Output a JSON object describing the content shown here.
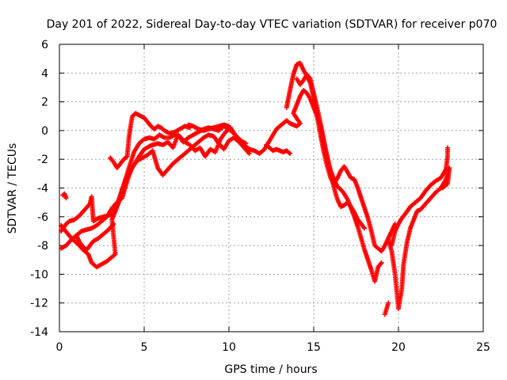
{
  "chart_data": {
    "type": "scatter",
    "title": "Day 201 of 2022, Sidereal Day-to-day VTEC variation (SDTVAR) for receiver p070",
    "xlabel": "GPS time / hours",
    "ylabel": "SDTVAR / TECUs",
    "xlim": [
      0,
      25
    ],
    "ylim": [
      -14,
      6
    ],
    "x_ticks": [
      "0",
      "5",
      "10",
      "15",
      "20",
      "25"
    ],
    "y_ticks": [
      "-14",
      "-12",
      "-10",
      "-8",
      "-6",
      "-4",
      "-2",
      "0",
      "2",
      "4",
      "6"
    ],
    "grid": true,
    "marker": "plus",
    "color": "#ff0000",
    "series": [
      {
        "points": [
          [
            0.1,
            -7.0
          ],
          [
            0.4,
            -6.5
          ],
          [
            0.6,
            -6.3
          ],
          [
            0.9,
            -6.2
          ],
          [
            1.2,
            -5.9
          ],
          [
            1.5,
            -5.5
          ],
          [
            1.8,
            -5.1
          ],
          [
            1.9,
            -4.6
          ],
          [
            2.0,
            -6.3
          ],
          [
            2.3,
            -6.1
          ],
          [
            2.6,
            -6.0
          ],
          [
            2.9,
            -5.9
          ],
          [
            3.2,
            -5.8
          ],
          [
            3.5,
            -4.8
          ],
          [
            3.8,
            -3.8
          ],
          [
            4.1,
            -2.6
          ],
          [
            4.4,
            -1.5
          ],
          [
            4.7,
            -0.9
          ],
          [
            5.0,
            -0.6
          ],
          [
            5.3,
            -0.5
          ],
          [
            5.6,
            -0.6
          ],
          [
            5.9,
            -0.3
          ],
          [
            6.2,
            -0.5
          ],
          [
            6.5,
            -0.5
          ],
          [
            6.8,
            -0.3
          ],
          [
            7.1,
            -0.4
          ],
          [
            7.4,
            -0.8
          ],
          [
            7.7,
            -1.0
          ],
          [
            8.0,
            -1.4
          ],
          [
            8.3,
            -1.2
          ],
          [
            8.6,
            -1.8
          ],
          [
            8.9,
            -1.3
          ],
          [
            9.2,
            -1.5
          ],
          [
            9.5,
            -0.6
          ],
          [
            9.8,
            -0.1
          ],
          [
            10.1,
            0.2
          ],
          [
            10.4,
            -0.4
          ],
          [
            10.7,
            -0.7
          ],
          [
            11.0,
            -0.9
          ]
        ]
      },
      {
        "points": [
          [
            0.1,
            -8.2
          ],
          [
            0.4,
            -8.0
          ],
          [
            0.7,
            -7.6
          ],
          [
            1.0,
            -7.3
          ],
          [
            1.3,
            -7.0
          ],
          [
            1.6,
            -6.9
          ],
          [
            1.9,
            -6.8
          ],
          [
            2.2,
            -6.6
          ],
          [
            2.5,
            -6.3
          ],
          [
            2.8,
            -6.0
          ],
          [
            3.1,
            -5.4
          ],
          [
            3.4,
            -5.0
          ],
          [
            3.7,
            -4.7
          ],
          [
            4.0,
            -3.5
          ],
          [
            4.3,
            -2.5
          ],
          [
            4.6,
            -2.1
          ],
          [
            4.9,
            -1.9
          ],
          [
            5.2,
            -1.7
          ],
          [
            5.5,
            -1.4
          ],
          [
            5.8,
            -2.6
          ],
          [
            6.1,
            -3.1
          ],
          [
            6.4,
            -2.7
          ],
          [
            6.7,
            -2.3
          ],
          [
            7.0,
            -2.0
          ],
          [
            7.3,
            -1.7
          ],
          [
            7.6,
            -1.4
          ],
          [
            7.9,
            -1.1
          ],
          [
            8.2,
            -0.8
          ],
          [
            8.5,
            -0.5
          ],
          [
            8.8,
            -0.3
          ],
          [
            9.1,
            -0.4
          ],
          [
            9.4,
            -0.9
          ],
          [
            9.7,
            -1.3
          ],
          [
            10.0,
            -0.7
          ],
          [
            10.3,
            -0.5
          ],
          [
            10.6,
            -0.8
          ],
          [
            10.9,
            -1.2
          ],
          [
            11.2,
            -1.6
          ]
        ]
      },
      {
        "points": [
          [
            0.1,
            -6.6
          ],
          [
            0.3,
            -6.9
          ],
          [
            0.5,
            -7.2
          ],
          [
            0.8,
            -7.6
          ],
          [
            1.1,
            -7.9
          ],
          [
            1.4,
            -8.3
          ],
          [
            1.7,
            -8.6
          ],
          [
            1.9,
            -9.2
          ],
          [
            2.2,
            -9.5
          ],
          [
            2.5,
            -9.3
          ],
          [
            2.8,
            -9.1
          ],
          [
            3.1,
            -8.8
          ],
          [
            3.3,
            -8.6
          ],
          [
            3.1,
            -6.2
          ],
          [
            3.3,
            -5.6
          ],
          [
            3.5,
            -5.0
          ],
          [
            3.7,
            -4.1
          ],
          [
            3.9,
            -3.4
          ],
          [
            4.1,
            -3.0
          ],
          [
            4.4,
            -2.4
          ],
          [
            4.7,
            -1.8
          ],
          [
            5.0,
            -1.3
          ],
          [
            5.3,
            -1.1
          ],
          [
            5.5,
            -1.0
          ],
          [
            5.8,
            -0.9
          ],
          [
            6.1,
            -1.0
          ],
          [
            6.4,
            -0.8
          ],
          [
            6.7,
            -1.2
          ],
          [
            7.0,
            -0.3
          ],
          [
            7.3,
            -0.8
          ],
          [
            7.6,
            -0.5
          ],
          [
            7.9,
            -0.3
          ],
          [
            8.2,
            -0.1
          ],
          [
            8.5,
            0.1
          ],
          [
            8.8,
            0.2
          ],
          [
            9.1,
            0.1
          ],
          [
            9.4,
            0.0
          ],
          [
            9.7,
            0.3
          ],
          [
            10.0,
            0.1
          ],
          [
            10.3,
            -0.2
          ]
        ]
      },
      {
        "points": [
          [
            0.2,
            -4.5
          ],
          [
            0.3,
            -4.4
          ],
          [
            0.4,
            -4.7
          ],
          [
            1.0,
            -7.3
          ],
          [
            1.2,
            -7.8
          ],
          [
            1.4,
            -8.1
          ],
          [
            1.6,
            -8.3
          ],
          [
            1.8,
            -8.0
          ],
          [
            2.0,
            -7.7
          ],
          [
            2.3,
            -7.5
          ],
          [
            2.6,
            -7.2
          ],
          [
            2.9,
            -6.9
          ],
          [
            3.2,
            -6.5
          ],
          [
            3.0,
            -1.9
          ],
          [
            3.2,
            -2.2
          ],
          [
            3.4,
            -2.6
          ],
          [
            3.6,
            -2.3
          ],
          [
            3.8,
            -2.0
          ],
          [
            4.0,
            -1.8
          ],
          [
            4.1,
            -0.5
          ],
          [
            4.2,
            0.3
          ],
          [
            4.3,
            1.0
          ],
          [
            4.5,
            1.2
          ],
          [
            4.8,
            1.0
          ],
          [
            5.0,
            0.9
          ],
          [
            5.2,
            0.6
          ],
          [
            5.4,
            0.3
          ],
          [
            5.6,
            0.1
          ],
          [
            5.8,
            0.3
          ],
          [
            6.0,
            0.2
          ],
          [
            6.2,
            0.0
          ],
          [
            6.5,
            -0.2
          ],
          [
            6.8,
            -0.1
          ],
          [
            7.1,
            0.1
          ],
          [
            7.4,
            0.3
          ],
          [
            7.7,
            0.2
          ]
        ]
      },
      {
        "points": [
          [
            7.6,
            0.4
          ],
          [
            7.9,
            0.3
          ],
          [
            8.2,
            0.1
          ],
          [
            8.5,
            0.0
          ],
          [
            8.8,
            0.1
          ],
          [
            9.1,
            0.2
          ],
          [
            9.4,
            0.3
          ],
          [
            9.7,
            0.4
          ],
          [
            10.0,
            0.3
          ],
          [
            10.3,
            -0.2
          ],
          [
            10.6,
            -0.6
          ],
          [
            10.9,
            -1.0
          ],
          [
            11.2,
            -1.3
          ],
          [
            11.5,
            -1.4
          ],
          [
            11.8,
            -1.6
          ],
          [
            12.1,
            -1.3
          ],
          [
            12.4,
            -0.7
          ],
          [
            12.6,
            -0.3
          ],
          [
            12.8,
            0.1
          ],
          [
            13.0,
            0.3
          ],
          [
            13.2,
            0.5
          ],
          [
            13.4,
            0.7
          ],
          [
            13.6,
            0.5
          ],
          [
            13.8,
            0.4
          ],
          [
            14.0,
            0.3
          ],
          [
            14.2,
            0.5
          ],
          [
            13.8,
            1.2
          ],
          [
            14.0,
            1.8
          ],
          [
            14.2,
            2.4
          ],
          [
            14.4,
            2.8
          ],
          [
            14.6,
            2.6
          ],
          [
            14.8,
            2.2
          ],
          [
            15.0,
            1.6
          ],
          [
            15.2,
            1.0
          ],
          [
            15.4,
            0.2
          ],
          [
            15.6,
            -0.8
          ],
          [
            15.8,
            -1.8
          ],
          [
            16.0,
            -3.0
          ],
          [
            16.2,
            -4.0
          ],
          [
            16.4,
            -4.8
          ],
          [
            16.6,
            -5.3
          ],
          [
            16.8,
            -5.2
          ],
          [
            17.0,
            -5.0
          ],
          [
            17.2,
            -5.3
          ],
          [
            17.4,
            -5.7
          ],
          [
            17.6,
            -6.2
          ],
          [
            17.8,
            -6.5
          ],
          [
            18.0,
            -6.8
          ]
        ]
      },
      {
        "points": [
          [
            12.2,
            -1.0
          ],
          [
            12.4,
            -1.2
          ],
          [
            12.6,
            -1.4
          ],
          [
            12.8,
            -1.3
          ],
          [
            13.0,
            -1.4
          ],
          [
            13.2,
            -1.5
          ],
          [
            13.4,
            -1.4
          ],
          [
            13.6,
            -1.6
          ],
          [
            13.4,
            1.6
          ],
          [
            13.6,
            2.8
          ],
          [
            13.8,
            3.9
          ],
          [
            14.0,
            4.6
          ],
          [
            14.2,
            4.7
          ],
          [
            14.4,
            4.2
          ],
          [
            14.6,
            3.8
          ],
          [
            14.8,
            3.3
          ],
          [
            15.0,
            2.3
          ],
          [
            15.2,
            1.0
          ],
          [
            15.4,
            -0.3
          ],
          [
            15.6,
            -1.5
          ],
          [
            15.8,
            -2.5
          ],
          [
            16.0,
            -3.3
          ],
          [
            16.2,
            -3.7
          ],
          [
            16.4,
            -3.3
          ],
          [
            16.6,
            -2.8
          ],
          [
            16.8,
            -2.5
          ],
          [
            17.0,
            -2.9
          ],
          [
            17.2,
            -3.3
          ],
          [
            17.4,
            -3.4
          ],
          [
            17.6,
            -4.0
          ],
          [
            17.8,
            -4.7
          ],
          [
            18.0,
            -5.4
          ],
          [
            18.2,
            -6.1
          ],
          [
            18.4,
            -7.0
          ],
          [
            18.6,
            -8.0
          ],
          [
            18.8,
            -8.2
          ],
          [
            19.0,
            -8.4
          ],
          [
            19.2,
            -8.0
          ],
          [
            19.4,
            -7.5
          ],
          [
            19.6,
            -7.0
          ],
          [
            19.8,
            -6.5
          ]
        ]
      },
      {
        "points": [
          [
            14.0,
            3.6
          ],
          [
            14.2,
            3.2
          ],
          [
            14.4,
            3.5
          ],
          [
            14.6,
            3.9
          ],
          [
            14.8,
            3.6
          ],
          [
            15.0,
            2.6
          ],
          [
            15.2,
            1.6
          ],
          [
            15.4,
            0.5
          ],
          [
            15.6,
            -0.7
          ],
          [
            15.8,
            -1.9
          ],
          [
            16.0,
            -2.8
          ],
          [
            16.2,
            -3.4
          ],
          [
            16.4,
            -3.9
          ],
          [
            16.6,
            -4.1
          ],
          [
            16.8,
            -4.4
          ],
          [
            17.0,
            -4.8
          ],
          [
            17.2,
            -5.4
          ],
          [
            17.4,
            -6.0
          ],
          [
            17.6,
            -6.7
          ],
          [
            17.8,
            -7.5
          ],
          [
            18.0,
            -8.3
          ],
          [
            18.2,
            -9.0
          ],
          [
            18.4,
            -9.7
          ],
          [
            18.6,
            -10.5
          ],
          [
            18.8,
            -9.5
          ],
          [
            19.0,
            -9.2
          ],
          [
            19.2,
            -12.8
          ],
          [
            19.4,
            -12.0
          ],
          [
            19.6,
            -8.0
          ],
          [
            19.8,
            -7.0
          ],
          [
            20.0,
            -6.5
          ],
          [
            20.2,
            -6.1
          ],
          [
            20.4,
            -5.8
          ],
          [
            20.7,
            -5.3
          ],
          [
            21.0,
            -5.0
          ],
          [
            21.3,
            -4.7
          ],
          [
            21.6,
            -4.2
          ],
          [
            21.9,
            -3.8
          ],
          [
            22.2,
            -3.5
          ],
          [
            22.5,
            -3.3
          ],
          [
            22.8,
            -2.7
          ],
          [
            22.9,
            -1.8
          ],
          [
            22.9,
            -1.2
          ]
        ]
      },
      {
        "points": [
          [
            19.4,
            -7.6
          ],
          [
            19.6,
            -8.4
          ],
          [
            19.8,
            -10.0
          ],
          [
            20.0,
            -12.4
          ],
          [
            20.2,
            -11.0
          ],
          [
            20.3,
            -9.3
          ],
          [
            20.5,
            -7.8
          ],
          [
            20.7,
            -6.8
          ],
          [
            20.9,
            -6.2
          ],
          [
            21.1,
            -5.6
          ],
          [
            21.3,
            -5.5
          ],
          [
            21.6,
            -5.1
          ],
          [
            21.9,
            -4.7
          ],
          [
            22.2,
            -4.3
          ],
          [
            22.5,
            -4.0
          ],
          [
            22.8,
            -3.4
          ],
          [
            23.0,
            -2.6
          ],
          [
            22.9,
            -3.7
          ],
          [
            22.6,
            -4.0
          ]
        ]
      }
    ]
  }
}
